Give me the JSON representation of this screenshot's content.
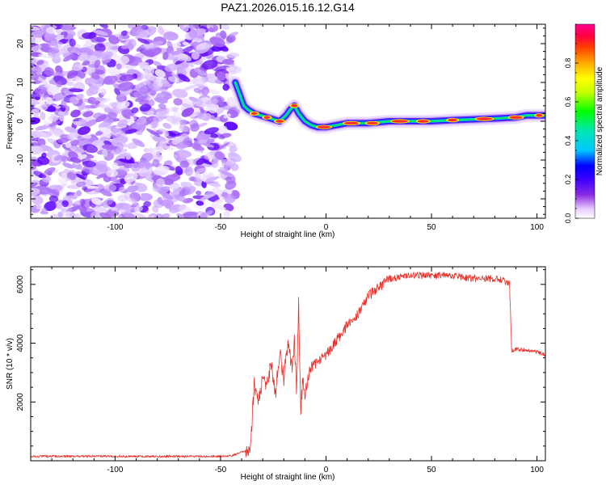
{
  "title": "PAZ1.2026.015.16.12.G14",
  "chart_data": [
    {
      "type": "heatmap",
      "xlabel": "Height of straight line (km)",
      "ylabel": "Frequency (Hz)",
      "xlim": [
        -140,
        104
      ],
      "ylim": [
        -25,
        25
      ],
      "xticks": [
        -100,
        -50,
        0,
        50,
        100
      ],
      "xtick_labels": [
        "-100",
        "-50",
        "0",
        "50",
        "100"
      ],
      "yticks": [
        -20,
        -10,
        0,
        10,
        20
      ],
      "ytick_labels": [
        "-20",
        "-10",
        "0",
        "10",
        "20"
      ],
      "noise_region_km": [
        -140,
        -43
      ],
      "ridge": {
        "x": [
          -43,
          -41,
          -39,
          -37,
          -34,
          -31,
          -28,
          -25,
          -22,
          -19,
          -17,
          -15,
          -13,
          -10,
          -7,
          -4,
          0,
          5,
          10,
          20,
          30,
          40,
          50,
          60,
          70,
          80,
          90,
          95,
          100,
          104
        ],
        "y": [
          10,
          7,
          4,
          3,
          2,
          1.5,
          1,
          0.5,
          0,
          1.5,
          3,
          4,
          2,
          0,
          -1,
          -1.5,
          -1.5,
          -1,
          -0.5,
          -0.5,
          0,
          0,
          0,
          0.3,
          0.5,
          0.7,
          1,
          1.5,
          1.5,
          1.5
        ]
      },
      "colorbar": {
        "label": "Normalized spectral amplitude",
        "range": [
          0,
          1
        ],
        "ticks": [
          0,
          0.2,
          0.4,
          0.6,
          0.8
        ],
        "tick_labels": [
          "0.0",
          "0.2",
          "0.4",
          "0.6",
          "0.8"
        ],
        "colors": [
          "#ffffff",
          "#e6c8ff",
          "#8a2be2",
          "#3c00ff",
          "#0000ff",
          "#00c8ff",
          "#00e6b4",
          "#00ff00",
          "#c8ff00",
          "#ffff00",
          "#ffaa00",
          "#ff4000",
          "#ff0040",
          "#ff0090"
        ]
      }
    },
    {
      "type": "line",
      "xlabel": "Height of straight line (km)",
      "ylabel": "SNR (10 * v/v)",
      "xlim": [
        -140,
        104
      ],
      "ylim": [
        0,
        6600
      ],
      "xticks": [
        -100,
        -50,
        0,
        50,
        100
      ],
      "xtick_labels": [
        "-100",
        "-50",
        "0",
        "50",
        "100"
      ],
      "yticks": [
        2000,
        4000,
        6000
      ],
      "ytick_labels": [
        "2000",
        "4000",
        "6000"
      ],
      "color": "#e8302a",
      "series": [
        {
          "name": "SNR",
          "x": [
            -140,
            -120,
            -100,
            -80,
            -60,
            -45,
            -40,
            -36,
            -34,
            -32,
            -30,
            -28,
            -26,
            -24,
            -22,
            -20,
            -18,
            -16,
            -15,
            -14,
            -13,
            -12,
            -11,
            -10,
            -8,
            -5,
            0,
            5,
            10,
            15,
            20,
            25,
            30,
            35,
            40,
            50,
            60,
            70,
            80,
            85,
            87,
            88,
            90,
            95,
            100,
            104
          ],
          "y": [
            150,
            150,
            150,
            150,
            150,
            160,
            300,
            350,
            2600,
            2000,
            2800,
            2500,
            3300,
            2200,
            3700,
            2800,
            4100,
            3000,
            4200,
            2500,
            5300,
            1700,
            2800,
            2100,
            3100,
            3300,
            3600,
            4100,
            4600,
            5000,
            5600,
            5900,
            6200,
            6250,
            6300,
            6300,
            6300,
            6200,
            6200,
            6100,
            6050,
            3750,
            3800,
            3750,
            3700,
            3600
          ]
        }
      ]
    }
  ]
}
